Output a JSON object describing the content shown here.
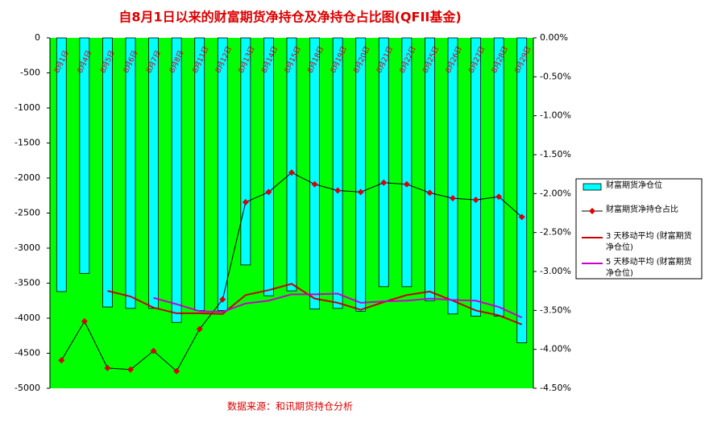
{
  "chart_data": {
    "type": "bar",
    "title": "自8月1日以来的财富期货净持仓及净持仓占比图(QFII基金)",
    "source": "数据来源：和讯期货持仓分析",
    "categories": [
      "8月1日",
      "8月4日",
      "8月5日",
      "8月6日",
      "8月7日",
      "8月8日",
      "8月11日",
      "8月12日",
      "8月13日",
      "8月14日",
      "8月15日",
      "8月18日",
      "8月19日",
      "8月20日",
      "8月21日",
      "8月22日",
      "8月25日",
      "8月26日",
      "8月27日",
      "8月28日",
      "8月29日"
    ],
    "series": [
      {
        "name": "财富期货净仓位",
        "type": "bar",
        "color": "#00ffff",
        "values": [
          -3620,
          -3360,
          -3840,
          -3860,
          -3860,
          -4060,
          -3890,
          -3890,
          -3240,
          -3680,
          -3610,
          -3870,
          -3860,
          -3900,
          -3550,
          -3550,
          -3750,
          -3940,
          -3970,
          -3970,
          -4350
        ]
      },
      {
        "name": "财富期货净持仓占比",
        "type": "line",
        "axis": "y2",
        "color": "#000000",
        "marker_color": "#dd0000",
        "values": [
          -4.14,
          -3.64,
          -4.24,
          -4.26,
          -4.02,
          -4.28,
          -3.74,
          -3.36,
          -2.11,
          -1.98,
          -1.73,
          -1.88,
          -1.96,
          -1.98,
          -1.86,
          -1.88,
          -1.99,
          -2.06,
          -2.08,
          -2.04,
          -2.3
        ]
      },
      {
        "name": "3 天移动平均 (财富期货净仓位)",
        "type": "line",
        "color": "#cc0000",
        "values": [
          null,
          null,
          -3610,
          -3690,
          -3850,
          -3930,
          -3930,
          -3940,
          -3670,
          -3600,
          -3510,
          -3720,
          -3780,
          -3880,
          -3770,
          -3670,
          -3620,
          -3750,
          -3890,
          -3960,
          -4090
        ]
      },
      {
        "name": "5 天移动平均 (财富期货净仓位)",
        "type": "line",
        "color": "#cc00cc",
        "values": [
          null,
          null,
          null,
          null,
          -3710,
          -3800,
          -3900,
          -3910,
          -3790,
          -3750,
          -3660,
          -3660,
          -3650,
          -3780,
          -3760,
          -3750,
          -3720,
          -3740,
          -3750,
          -3840,
          -3990
        ]
      }
    ],
    "ylim": [
      -5000,
      0
    ],
    "yticks": [
      0,
      -500,
      -1000,
      -1500,
      -2000,
      -2500,
      -3000,
      -3500,
      -4000,
      -4500,
      -5000
    ],
    "y2lim": [
      -4.5,
      0
    ],
    "y2ticks": [
      {
        "value": 0,
        "label": "0.00%"
      },
      {
        "value": -0.5,
        "label": "-0.50%"
      },
      {
        "value": -1,
        "label": "-1.00%"
      },
      {
        "value": -1.5,
        "label": "-1.50%"
      },
      {
        "value": -2,
        "label": "-2.00%"
      },
      {
        "value": -2.5,
        "label": "-2.50%"
      },
      {
        "value": -3,
        "label": "-3.00%"
      },
      {
        "value": -3.5,
        "label": "-3.50%"
      },
      {
        "value": -4,
        "label": "-4.00%"
      },
      {
        "value": -4.5,
        "label": "-4.50%"
      }
    ],
    "plot_background": "#00ff00",
    "legend": "right"
  }
}
